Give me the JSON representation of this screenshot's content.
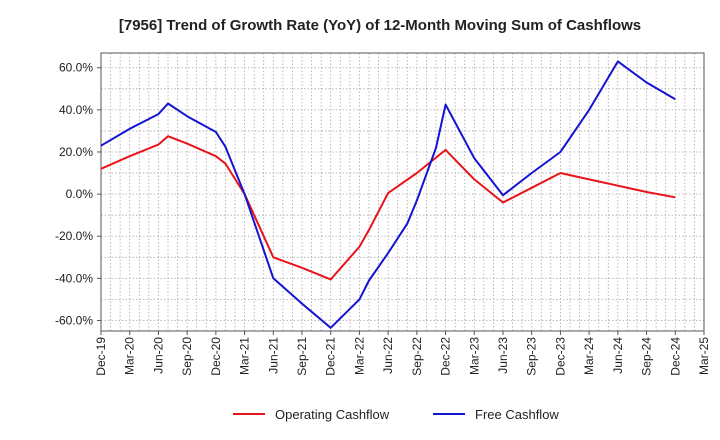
{
  "chart_data": {
    "type": "line",
    "title": "[7956]  Trend of Growth Rate (YoY) of 12-Month Moving Sum of Cashflows",
    "ylabel": "",
    "xlabel": "",
    "ylim": [
      -65,
      67
    ],
    "yticks": [
      -60,
      -40,
      -20,
      0,
      20,
      40,
      60
    ],
    "ytick_labels": [
      "-60.0%",
      "-40.0%",
      "-20.0%",
      "0.0%",
      "20.0%",
      "40.0%",
      "60.0%"
    ],
    "x_labels": [
      "Dec-19",
      "Mar-20",
      "Jun-20",
      "Sep-20",
      "Dec-20",
      "Mar-21",
      "Jun-21",
      "Sep-21",
      "Dec-21",
      "Mar-22",
      "Jun-22",
      "Sep-22",
      "Dec-22",
      "Mar-23",
      "Jun-23",
      "Sep-23",
      "Dec-23",
      "Mar-24",
      "Jun-24",
      "Sep-24",
      "Dec-24",
      "Mar-25"
    ],
    "grid": true,
    "legend_position": "bottom",
    "series": [
      {
        "name": "Operating Cashflow",
        "color": "#e8141a",
        "points": [
          {
            "x": "Dec-19",
            "y": 12
          },
          {
            "x": "Mar-20",
            "y": 18
          },
          {
            "x": "Jun-20",
            "y": 23.5
          },
          {
            "x": "Jul-20",
            "y": 27.5
          },
          {
            "x": "Sep-20",
            "y": 24
          },
          {
            "x": "Dec-20",
            "y": 18
          },
          {
            "x": "Jan-21",
            "y": 14.5
          },
          {
            "x": "Mar-21",
            "y": 0
          },
          {
            "x": "Jun-21",
            "y": -30
          },
          {
            "x": "Sep-21",
            "y": -35
          },
          {
            "x": "Dec-21",
            "y": -40.5
          },
          {
            "x": "Mar-22",
            "y": -25
          },
          {
            "x": "Apr-22",
            "y": -17
          },
          {
            "x": "Jun-22",
            "y": 0.5
          },
          {
            "x": "Sep-22",
            "y": 10
          },
          {
            "x": "Dec-22",
            "y": 21
          },
          {
            "x": "Mar-23",
            "y": 7
          },
          {
            "x": "Jun-23",
            "y": -4
          },
          {
            "x": "Sep-23",
            "y": 3
          },
          {
            "x": "Dec-23",
            "y": 10
          },
          {
            "x": "Mar-24",
            "y": 7
          },
          {
            "x": "Jun-24",
            "y": 4
          },
          {
            "x": "Sep-24",
            "y": 1
          },
          {
            "x": "Dec-24",
            "y": -1.5
          }
        ]
      },
      {
        "name": "Free Cashflow",
        "color": "#1414d2",
        "points": [
          {
            "x": "Dec-19",
            "y": 23
          },
          {
            "x": "Mar-20",
            "y": 31
          },
          {
            "x": "Jun-20",
            "y": 38
          },
          {
            "x": "Jul-20",
            "y": 43
          },
          {
            "x": "Sep-20",
            "y": 37
          },
          {
            "x": "Dec-20",
            "y": 29.5
          },
          {
            "x": "Jan-21",
            "y": 22.5
          },
          {
            "x": "Mar-21",
            "y": 0
          },
          {
            "x": "Jun-21",
            "y": -40
          },
          {
            "x": "Sep-21",
            "y": -52
          },
          {
            "x": "Dec-21",
            "y": -63.5
          },
          {
            "x": "Mar-22",
            "y": -50
          },
          {
            "x": "Apr-22",
            "y": -41
          },
          {
            "x": "Jun-22",
            "y": -28
          },
          {
            "x": "Aug-22",
            "y": -14
          },
          {
            "x": "Sep-22",
            "y": -3
          },
          {
            "x": "Nov-22",
            "y": 22
          },
          {
            "x": "Dec-22",
            "y": 42.5
          },
          {
            "x": "Mar-23",
            "y": 17
          },
          {
            "x": "Jun-23",
            "y": -0.5
          },
          {
            "x": "Sep-23",
            "y": 10
          },
          {
            "x": "Dec-23",
            "y": 20
          },
          {
            "x": "Mar-24",
            "y": 40
          },
          {
            "x": "Jun-24",
            "y": 63
          },
          {
            "x": "Sep-24",
            "y": 53
          },
          {
            "x": "Dec-24",
            "y": 45
          }
        ]
      }
    ]
  }
}
